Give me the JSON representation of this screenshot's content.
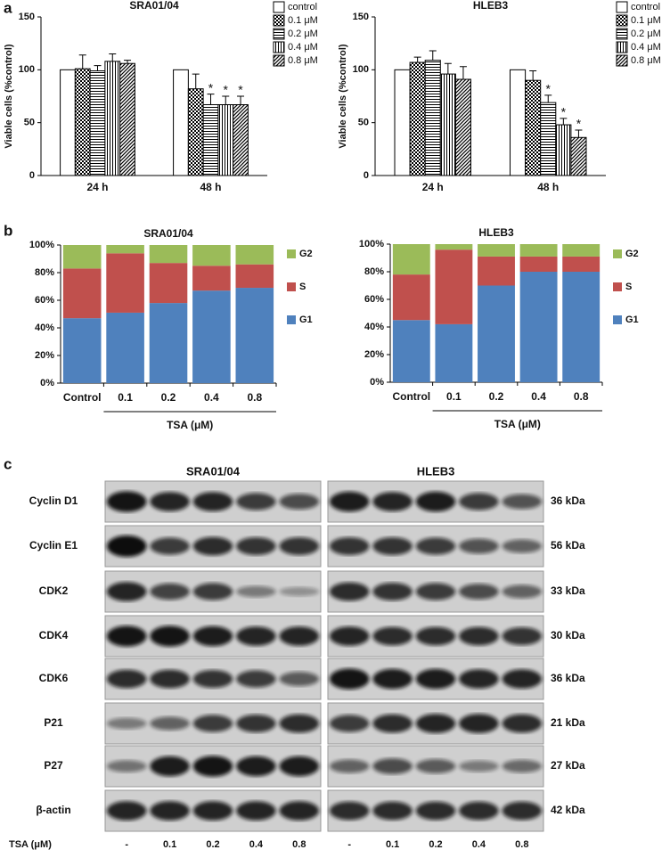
{
  "panel_labels": [
    "a",
    "b",
    "c"
  ],
  "chart_data": [
    {
      "type": "bar",
      "title": "SRA01/04",
      "ylabel": "Viable cells (%control)",
      "categories": [
        "24 h",
        "48 h"
      ],
      "ylim": [
        0,
        150
      ],
      "yticks": [
        0,
        50,
        100,
        150
      ],
      "grid": false,
      "series": [
        {
          "name": "control",
          "color": "#000000",
          "pattern": "plain",
          "values": [
            100,
            100
          ],
          "errors": [
            0,
            0
          ],
          "significance": [
            null,
            null
          ]
        },
        {
          "name": "0.1 μM",
          "color": "#000000",
          "pattern": "check",
          "values": [
            101,
            82
          ],
          "errors": [
            13,
            14
          ],
          "significance": [
            null,
            null
          ]
        },
        {
          "name": "0.2 μM",
          "color": "#000000",
          "pattern": "hlines",
          "values": [
            99,
            67
          ],
          "errors": [
            5,
            10
          ],
          "significance": [
            null,
            "*"
          ]
        },
        {
          "name": "0.4 μM",
          "color": "#000000",
          "pattern": "vlines",
          "values": [
            108,
            67
          ],
          "errors": [
            7,
            8
          ],
          "significance": [
            null,
            "*"
          ]
        },
        {
          "name": "0.8 μM",
          "color": "#000000",
          "pattern": "diag",
          "values": [
            106,
            67
          ],
          "errors": [
            3,
            8
          ],
          "significance": [
            null,
            "*"
          ]
        }
      ]
    },
    {
      "type": "bar",
      "title": "HLEB3",
      "ylabel": "Viable cells (%control)",
      "categories": [
        "24 h",
        "48 h"
      ],
      "ylim": [
        0,
        150
      ],
      "yticks": [
        0,
        50,
        100,
        150
      ],
      "grid": false,
      "series": [
        {
          "name": "control",
          "color": "#000000",
          "pattern": "plain",
          "values": [
            100,
            100
          ],
          "errors": [
            0,
            0
          ],
          "significance": [
            null,
            null
          ]
        },
        {
          "name": "0.1 μM",
          "color": "#000000",
          "pattern": "check",
          "values": [
            107,
            90
          ],
          "errors": [
            5,
            9
          ],
          "significance": [
            null,
            null
          ]
        },
        {
          "name": "0.2 μM",
          "color": "#000000",
          "pattern": "hlines",
          "values": [
            109,
            69
          ],
          "errors": [
            9,
            7
          ],
          "significance": [
            null,
            "*"
          ]
        },
        {
          "name": "0.4 μM",
          "color": "#000000",
          "pattern": "vlines",
          "values": [
            96,
            48
          ],
          "errors": [
            10,
            6
          ],
          "significance": [
            null,
            "*"
          ]
        },
        {
          "name": "0.8 μM",
          "color": "#000000",
          "pattern": "diag",
          "values": [
            91,
            36
          ],
          "errors": [
            12,
            7
          ],
          "significance": [
            null,
            "*"
          ]
        }
      ]
    },
    {
      "type": "stacked_bar",
      "title": "SRA01/04",
      "xlabel": "TSA (μM)",
      "categories": [
        "Control",
        "0.1",
        "0.2",
        "0.4",
        "0.8"
      ],
      "ylim": [
        0,
        100
      ],
      "grid": false,
      "yticks": [
        {
          "value": 0,
          "label": "0%"
        },
        {
          "value": 20,
          "label": "20%"
        },
        {
          "value": 40,
          "label": "40%"
        },
        {
          "value": 60,
          "label": "60%"
        },
        {
          "value": 80,
          "label": "80%"
        },
        {
          "value": 100,
          "label": "100%"
        }
      ],
      "series": [
        {
          "name": "G1",
          "color": "#4f81bd",
          "values": [
            47,
            51,
            58,
            67,
            69
          ]
        },
        {
          "name": "S",
          "color": "#c0504d",
          "values": [
            36,
            43,
            29,
            18,
            17
          ]
        },
        {
          "name": "G2",
          "color": "#9bbb59",
          "values": [
            17,
            6,
            13,
            15,
            14
          ]
        }
      ]
    },
    {
      "type": "stacked_bar",
      "title": "HLEB3",
      "xlabel": "TSA (μM)",
      "categories": [
        "Control",
        "0.1",
        "0.2",
        "0.4",
        "0.8"
      ],
      "ylim": [
        0,
        100
      ],
      "grid": false,
      "yticks": [
        {
          "value": 0,
          "label": "0%"
        },
        {
          "value": 20,
          "label": "20%"
        },
        {
          "value": 40,
          "label": "40%"
        },
        {
          "value": 60,
          "label": "60%"
        },
        {
          "value": 80,
          "label": "80%"
        },
        {
          "value": 100,
          "label": "100%"
        }
      ],
      "series": [
        {
          "name": "G1",
          "color": "#4f81bd",
          "values": [
            45,
            42,
            70,
            80,
            80
          ]
        },
        {
          "name": "S",
          "color": "#c0504d",
          "values": [
            33,
            54,
            21,
            11,
            11
          ]
        },
        {
          "name": "G2",
          "color": "#9bbb59",
          "values": [
            22,
            4,
            9,
            9,
            9
          ]
        }
      ]
    }
  ],
  "blot": {
    "cell_lines": [
      "SRA01/04",
      "HLEB3"
    ],
    "rows": [
      {
        "protein": "Cyclin D1",
        "size": "36 kDa"
      },
      {
        "protein": "Cyclin E1",
        "size": "56 kDa"
      },
      {
        "protein": "CDK2",
        "size": "33 kDa"
      },
      {
        "protein": "CDK4",
        "size": "30 kDa"
      },
      {
        "protein": "CDK6",
        "size": "36 kDa"
      },
      {
        "protein": "P21",
        "size": "21 kDa"
      },
      {
        "protein": "P27",
        "size": "27 kDa"
      },
      {
        "protein": "β-actin",
        "size": "42 kDa"
      }
    ],
    "treatment_label": "TSA (μM)",
    "lanes": [
      "-",
      "0.1",
      "0.2",
      "0.4",
      "0.8"
    ]
  }
}
